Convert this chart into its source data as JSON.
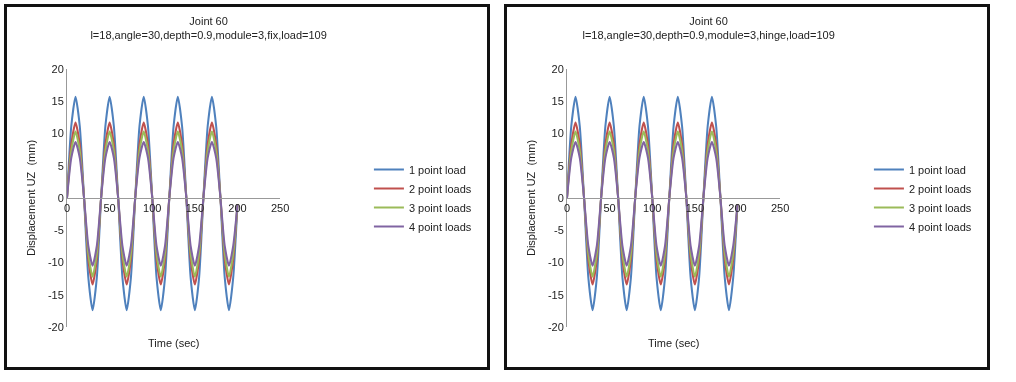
{
  "chart_data": [
    {
      "type": "line",
      "title": "Joint 60",
      "subtitle": "l=18,angle=30,depth=0.9,module=3,fix,load=109",
      "xlabel": "Time (sec)",
      "ylabel": "Displacement UZ  (mm)",
      "x": [
        0,
        5,
        10,
        15,
        20,
        25,
        30,
        35,
        40,
        45,
        50,
        55,
        60,
        65,
        70,
        75,
        80,
        85,
        90,
        95,
        100,
        105,
        110,
        115,
        120,
        125,
        130,
        135,
        140,
        145,
        150,
        155,
        160,
        165,
        170,
        175,
        180,
        185,
        190,
        195,
        200
      ],
      "series": [
        {
          "name": "1 point load",
          "color": "#4f81bd",
          "values": [
            0,
            11.1,
            15.7,
            11.1,
            0,
            -12.3,
            -17.4,
            -12.3,
            0,
            11.1,
            15.7,
            11.1,
            0,
            -12.3,
            -17.4,
            -12.3,
            0,
            11.1,
            15.7,
            11.1,
            0,
            -12.3,
            -17.4,
            -12.3,
            0,
            11.1,
            15.7,
            11.1,
            0,
            -12.3,
            -17.4,
            -12.3,
            0,
            11.1,
            15.7,
            11.1,
            0,
            -12.3,
            -17.4,
            -12.3,
            -1
          ]
        },
        {
          "name": "2 point loads",
          "color": "#c0504d",
          "values": [
            0,
            8.3,
            11.7,
            8.3,
            0,
            -9.5,
            -13.4,
            -9.5,
            0,
            8.3,
            11.7,
            8.3,
            0,
            -9.5,
            -13.4,
            -9.5,
            0,
            8.3,
            11.7,
            8.3,
            0,
            -9.5,
            -13.4,
            -9.5,
            0,
            8.3,
            11.7,
            8.3,
            0,
            -9.5,
            -13.4,
            -9.5,
            0,
            8.3,
            11.7,
            8.3,
            0,
            -9.5,
            -13.4,
            -9.5,
            -1
          ]
        },
        {
          "name": "3 point loads",
          "color": "#9bbb59",
          "values": [
            0,
            7.3,
            10.3,
            7.3,
            0,
            -8.6,
            -12.2,
            -8.6,
            0,
            7.3,
            10.3,
            7.3,
            0,
            -8.6,
            -12.2,
            -8.6,
            0,
            7.3,
            10.3,
            7.3,
            0,
            -8.6,
            -12.2,
            -8.6,
            0,
            7.3,
            10.3,
            7.3,
            0,
            -8.6,
            -12.2,
            -8.6,
            0,
            7.3,
            10.3,
            7.3,
            0,
            -8.6,
            -12.2,
            -8.6,
            -1
          ]
        },
        {
          "name": "4 point loads",
          "color": "#8064a2",
          "values": [
            0,
            6.2,
            8.7,
            6.2,
            0,
            -7.4,
            -10.5,
            -7.4,
            0,
            6.2,
            8.7,
            6.2,
            0,
            -7.4,
            -10.5,
            -7.4,
            0,
            6.2,
            8.7,
            6.2,
            0,
            -7.4,
            -10.5,
            -7.4,
            0,
            6.2,
            8.7,
            6.2,
            0,
            -7.4,
            -10.5,
            -7.4,
            0,
            6.2,
            8.7,
            6.2,
            0,
            -7.4,
            -10.5,
            -7.4,
            -1
          ]
        }
      ],
      "xlim": [
        0,
        250
      ],
      "xticks": [
        0,
        50,
        100,
        150,
        200,
        250
      ],
      "ylim": [
        -20,
        20
      ],
      "yticks": [
        -20,
        -15,
        -10,
        -5,
        0,
        5,
        10,
        15,
        20
      ],
      "grid": false,
      "legend": "right",
      "marker": "none",
      "line_style": "solid"
    },
    {
      "type": "line",
      "title": "Joint 60",
      "subtitle": "l=18,angle=30,depth=0.9,module=3,hinge,load=109",
      "xlabel": "Time (sec)",
      "ylabel": "Displacement UZ  (mm)",
      "x": [
        0,
        5,
        10,
        15,
        20,
        25,
        30,
        35,
        40,
        45,
        50,
        55,
        60,
        65,
        70,
        75,
        80,
        85,
        90,
        95,
        100,
        105,
        110,
        115,
        120,
        125,
        130,
        135,
        140,
        145,
        150,
        155,
        160,
        165,
        170,
        175,
        180,
        185,
        190,
        195,
        200
      ],
      "series": [
        {
          "name": "1 point load",
          "color": "#4f81bd",
          "values": [
            0,
            11.1,
            15.7,
            11.1,
            0,
            -12.3,
            -17.4,
            -12.3,
            0,
            11.1,
            15.7,
            11.1,
            0,
            -12.3,
            -17.4,
            -12.3,
            0,
            11.1,
            15.7,
            11.1,
            0,
            -12.3,
            -17.4,
            -12.3,
            0,
            11.1,
            15.7,
            11.1,
            0,
            -12.3,
            -17.4,
            -12.3,
            0,
            11.1,
            15.7,
            11.1,
            0,
            -12.3,
            -17.4,
            -12.3,
            -1
          ]
        },
        {
          "name": "2 point loads",
          "color": "#c0504d",
          "values": [
            0,
            8.3,
            11.7,
            8.3,
            0,
            -9.5,
            -13.4,
            -9.5,
            0,
            8.3,
            11.7,
            8.3,
            0,
            -9.5,
            -13.4,
            -9.5,
            0,
            8.3,
            11.7,
            8.3,
            0,
            -9.5,
            -13.4,
            -9.5,
            0,
            8.3,
            11.7,
            8.3,
            0,
            -9.5,
            -13.4,
            -9.5,
            0,
            8.3,
            11.7,
            8.3,
            0,
            -9.5,
            -13.4,
            -9.5,
            -1
          ]
        },
        {
          "name": "3 point loads",
          "color": "#9bbb59",
          "values": [
            0,
            7.3,
            10.3,
            7.3,
            0,
            -8.6,
            -12.2,
            -8.6,
            0,
            7.3,
            10.3,
            7.3,
            0,
            -8.6,
            -12.2,
            -8.6,
            0,
            7.3,
            10.3,
            7.3,
            0,
            -8.6,
            -12.2,
            -8.6,
            0,
            7.3,
            10.3,
            7.3,
            0,
            -8.6,
            -12.2,
            -8.6,
            0,
            7.3,
            10.3,
            7.3,
            0,
            -8.6,
            -12.2,
            -8.6,
            -1
          ]
        },
        {
          "name": "4 point loads",
          "color": "#8064a2",
          "values": [
            0,
            6.2,
            8.7,
            6.2,
            0,
            -7.4,
            -10.5,
            -7.4,
            0,
            6.2,
            8.7,
            6.2,
            0,
            -7.4,
            -10.5,
            -7.4,
            0,
            6.2,
            8.7,
            6.2,
            0,
            -7.4,
            -10.5,
            -7.4,
            0,
            6.2,
            8.7,
            6.2,
            0,
            -7.4,
            -10.5,
            -7.4,
            0,
            6.2,
            8.7,
            6.2,
            0,
            -7.4,
            -10.5,
            -7.4,
            -1
          ]
        }
      ],
      "xlim": [
        0,
        250
      ],
      "xticks": [
        0,
        50,
        100,
        150,
        200,
        250
      ],
      "ylim": [
        -20,
        20
      ],
      "yticks": [
        -20,
        -15,
        -10,
        -5,
        0,
        5,
        10,
        15,
        20
      ],
      "grid": false,
      "legend": "right",
      "marker": "none",
      "line_style": "solid"
    }
  ]
}
